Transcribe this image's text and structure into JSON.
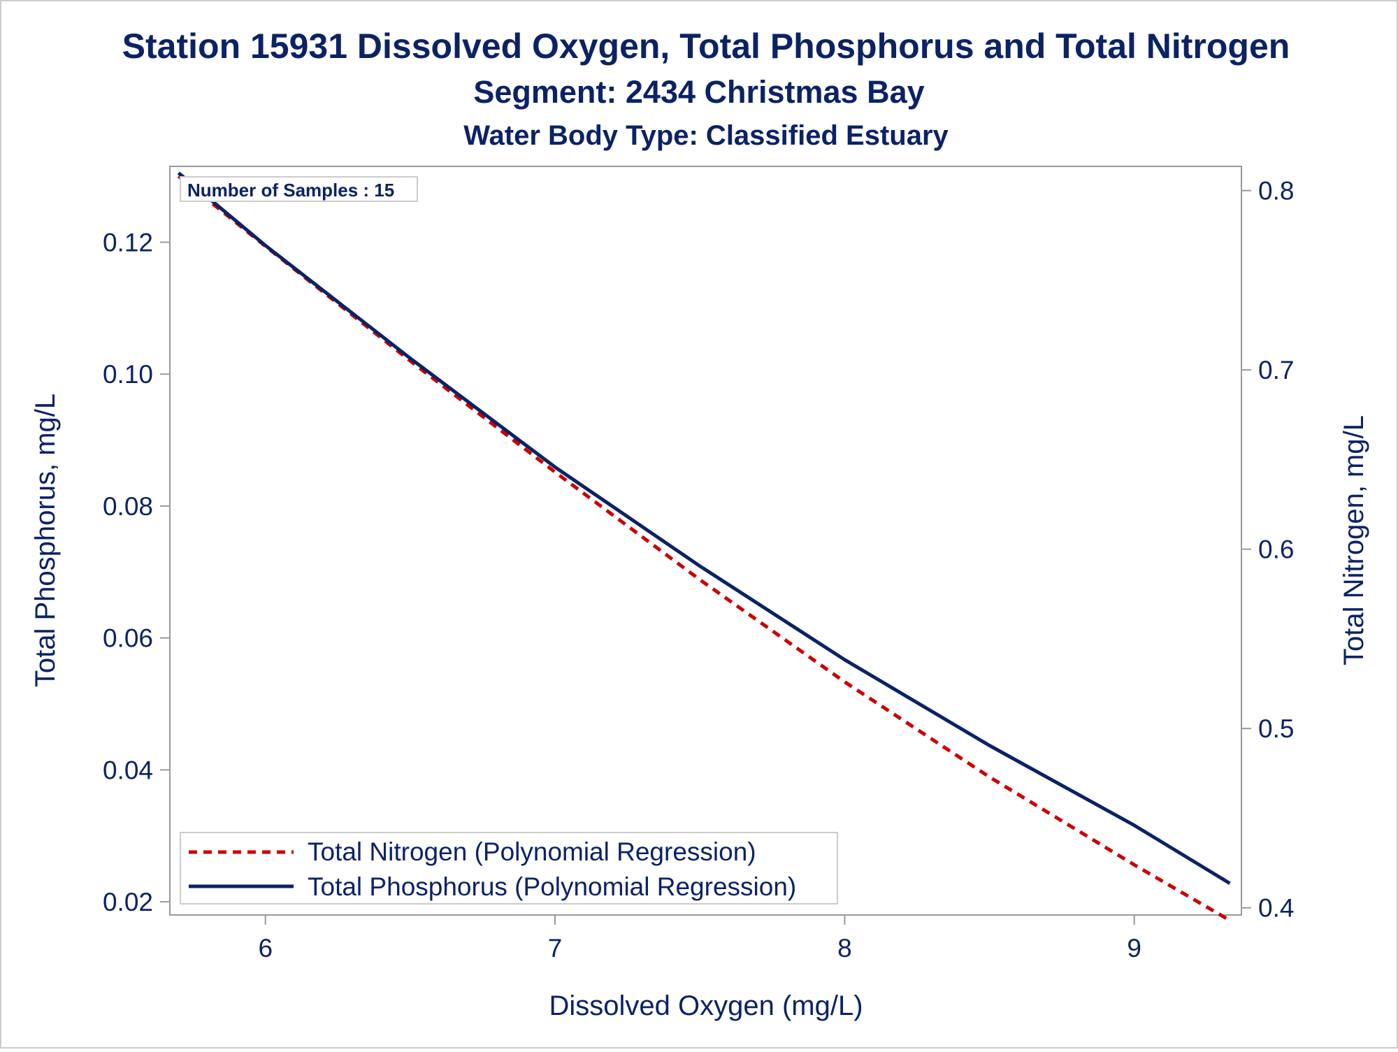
{
  "chart_data": {
    "type": "line",
    "title": "Station 15931  Dissolved Oxygen, Total Phosphorus and Total Nitrogen",
    "subtitle": "Segment: 2434  Christmas Bay",
    "subtitle2": "Water Body Type: Classified Estuary",
    "annotation": "Number of Samples : 15",
    "xlabel": "Dissolved Oxygen (mg/L)",
    "ylabel_left": "Total Phosphorus, mg/L",
    "ylabel_right": "Total Nitrogen, mg/L",
    "xlim": [
      5.67,
      9.37
    ],
    "ylim_left": [
      0.018,
      0.1315
    ],
    "ylim_right": [
      0.396,
      0.8135
    ],
    "x_ticks": [
      "6",
      "7",
      "8",
      "9"
    ],
    "x_tick_values": [
      6,
      7,
      8,
      9
    ],
    "y_left_ticks": [
      "0.02",
      "0.04",
      "0.06",
      "0.08",
      "0.10",
      "0.12"
    ],
    "y_left_tick_values": [
      0.02,
      0.04,
      0.06,
      0.08,
      0.1,
      0.12
    ],
    "y_right_ticks": [
      "0.4",
      "0.5",
      "0.6",
      "0.7",
      "0.8"
    ],
    "y_right_tick_values": [
      0.4,
      0.5,
      0.6,
      0.7,
      0.8
    ],
    "grid": false,
    "legend_position": "bottom-left",
    "series": [
      {
        "name": "Total Nitrogen (Polynomial Regression)",
        "axis": "right",
        "style": "dashed",
        "color": "#cc0000",
        "x": [
          5.7,
          6.0,
          6.5,
          7.0,
          7.5,
          8.0,
          8.5,
          9.0,
          9.33
        ],
        "y": [
          0.808,
          0.769,
          0.705,
          0.643,
          0.583,
          0.526,
          0.473,
          0.424,
          0.393
        ]
      },
      {
        "name": "Total Phosphorus (Polynomial Regression)",
        "axis": "left",
        "style": "solid",
        "color": "#0b2265",
        "x": [
          5.7,
          6.0,
          6.5,
          7.0,
          7.5,
          8.0,
          8.5,
          9.0,
          9.33
        ],
        "y": [
          0.1305,
          0.1195,
          0.1024,
          0.0859,
          0.0709,
          0.0567,
          0.0437,
          0.0316,
          0.0228
        ]
      }
    ]
  },
  "colors": {
    "text": "#0b2265",
    "axis": "#999999",
    "frame": "#bbbbbb",
    "nitrogen": "#cc0000",
    "phosphorus": "#0b2265"
  }
}
